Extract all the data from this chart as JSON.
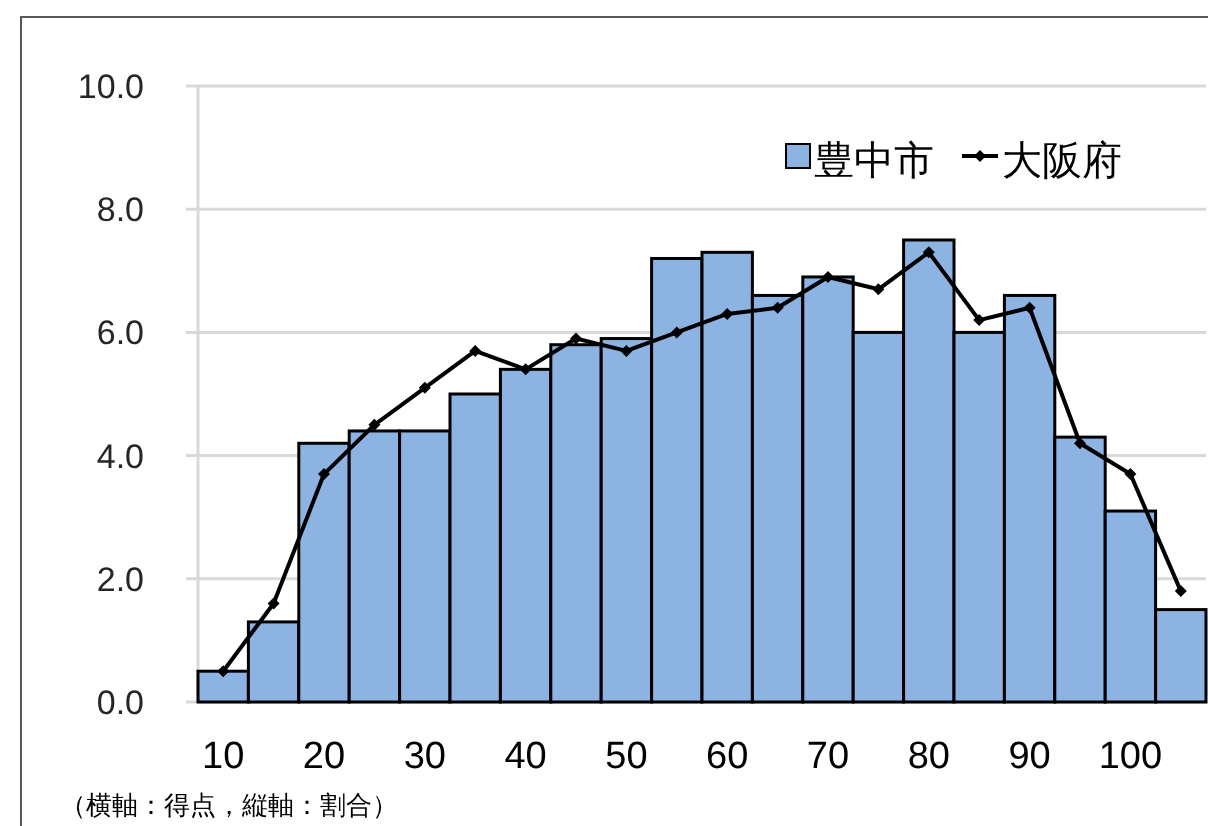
{
  "chart_data": {
    "type": "bar",
    "categories": [
      "10",
      null,
      "20",
      null,
      "30",
      null,
      "40",
      null,
      "50",
      null,
      "60",
      null,
      "70",
      null,
      "80",
      null,
      "90",
      null,
      "100",
      null
    ],
    "series": [
      {
        "name": "豊中市",
        "color": "#8db3e2",
        "values": [
          0.5,
          1.3,
          4.2,
          4.4,
          4.4,
          5.0,
          5.4,
          5.8,
          5.9,
          7.2,
          7.3,
          6.6,
          6.9,
          6.0,
          7.5,
          6.0,
          6.6,
          4.3,
          3.1,
          1.5
        ]
      },
      {
        "name": "大阪府",
        "type": "line",
        "color": "#000000",
        "values": [
          0.5,
          1.6,
          3.7,
          4.5,
          5.1,
          5.7,
          5.4,
          5.9,
          5.7,
          6.0,
          6.3,
          6.4,
          6.9,
          6.7,
          7.3,
          6.2,
          6.4,
          4.2,
          3.7,
          1.8
        ]
      }
    ],
    "ylim": [
      0,
      10
    ],
    "yticks": [
      {
        "value": 0,
        "label": "0.0"
      },
      {
        "value": 2,
        "label": "2.0"
      },
      {
        "value": 4,
        "label": "4.0"
      },
      {
        "value": 6,
        "label": "6.0"
      },
      {
        "value": 8,
        "label": "8.0"
      },
      {
        "value": 10,
        "label": "10.0"
      }
    ],
    "grid": "y",
    "legend": "top right",
    "marker": "diamond",
    "line_style": "solid",
    "annotations": [
      "（横軸：得点，縦軸：割合）"
    ]
  }
}
